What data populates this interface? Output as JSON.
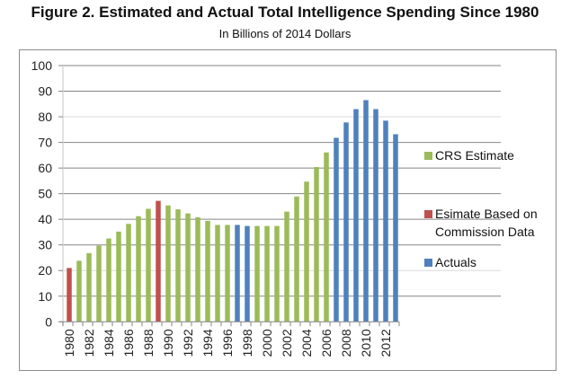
{
  "chart_data": {
    "type": "bar",
    "title": "Figure 2. Estimated and Actual Total Intelligence Spending Since 1980",
    "subtitle": "In Billions of 2014 Dollars",
    "xlabel": "",
    "ylabel": "",
    "ylim": [
      0,
      100
    ],
    "yticks": [
      "0",
      "10",
      "20",
      "30",
      "40",
      "50",
      "60",
      "70",
      "80",
      "90",
      "100"
    ],
    "grid": true,
    "legend_position": "right",
    "categories": [
      "1980",
      "1981",
      "1982",
      "1983",
      "1984",
      "1985",
      "1986",
      "1987",
      "1988",
      "1989",
      "1990",
      "1991",
      "1992",
      "1993",
      "1994",
      "1995",
      "1996",
      "1997",
      "1998",
      "1999",
      "2000",
      "2001",
      "2002",
      "2003",
      "2004",
      "2005",
      "2006",
      "2007",
      "2008",
      "2009",
      "2010",
      "2011",
      "2012",
      "2013"
    ],
    "xtick_labels": [
      "1980",
      "1982",
      "1984",
      "1986",
      "1988",
      "1990",
      "1992",
      "1994",
      "1996",
      "1998",
      "2000",
      "2002",
      "2004",
      "2006",
      "2008",
      "2010",
      "2012"
    ],
    "values": [
      21.0,
      23.8,
      26.8,
      29.7,
      32.5,
      35.2,
      38.2,
      41.2,
      44.1,
      47.2,
      45.4,
      43.9,
      42.3,
      40.8,
      39.4,
      37.8,
      37.8,
      37.8,
      37.4,
      37.4,
      37.4,
      37.4,
      43.0,
      48.9,
      54.7,
      60.4,
      66.1,
      71.8,
      77.8,
      83.0,
      86.5,
      83.0,
      78.5,
      73.2
    ],
    "series_type": [
      "commission",
      "crs",
      "crs",
      "crs",
      "crs",
      "crs",
      "crs",
      "crs",
      "crs",
      "commission",
      "crs",
      "crs",
      "crs",
      "crs",
      "crs",
      "crs",
      "crs",
      "actual",
      "actual",
      "crs",
      "crs",
      "crs",
      "crs",
      "crs",
      "crs",
      "crs",
      "crs",
      "actual",
      "actual",
      "actual",
      "actual",
      "actual",
      "actual",
      "actual"
    ],
    "series": [
      {
        "key": "crs",
        "name": "CRS Estimate",
        "color": "#9BBB59"
      },
      {
        "key": "commission",
        "name": "Esimate Based on Commission Data",
        "color": "#C0504D"
      },
      {
        "key": "actual",
        "name": "Actuals",
        "color": "#4F81BD"
      }
    ],
    "legend": [
      {
        "key": "crs",
        "lines": [
          "CRS Estimate"
        ]
      },
      {
        "key": "commission",
        "lines": [
          "Esimate Based on",
          "Commission Data"
        ]
      },
      {
        "key": "actual",
        "lines": [
          "Actuals"
        ]
      }
    ]
  }
}
